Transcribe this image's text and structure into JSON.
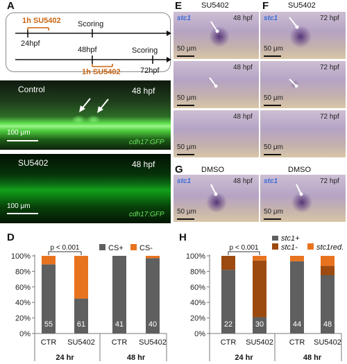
{
  "panels": {
    "A": {
      "label": "A",
      "upper": {
        "treatment": "1h SU5402",
        "tick1": "24hpf",
        "event": "Scoring"
      },
      "lower": {
        "tick1": "48hpf",
        "treatment": "1h SU5402",
        "event": "Scoring",
        "tick2": "72hpf"
      }
    },
    "B": {
      "label": "B",
      "condition": "Control",
      "time": "48 hpf",
      "scale": "100 μm",
      "marker": "cdh17:GFP"
    },
    "C": {
      "label": "C",
      "condition": "SU5402",
      "time": "48 hpf",
      "scale": "100 μm",
      "marker": "cdh17:GFP"
    },
    "E": {
      "label": "E",
      "condition": "SU5402",
      "images": [
        {
          "gene": "stc1",
          "time": "48 hpf",
          "scale": "50 μm"
        },
        {
          "gene": "",
          "time": "48 hpf",
          "scale": "50 μm"
        },
        {
          "gene": "",
          "time": "48 hpf",
          "scale": "50 μm"
        }
      ]
    },
    "F": {
      "label": "F",
      "condition": "SU5402",
      "images": [
        {
          "gene": "stc1",
          "time": "72 hpf",
          "scale": "50 μm"
        },
        {
          "gene": "",
          "time": "72 hpf",
          "scale": "50 μm"
        },
        {
          "gene": "",
          "time": "72 hpf",
          "scale": "50 μm"
        }
      ]
    },
    "G": {
      "label": "G",
      "left": {
        "condition": "DMSO",
        "gene": "stc1",
        "time": "48 hpf",
        "scale": "50 μm"
      },
      "right": {
        "condition": "DMSO",
        "gene": "stc1",
        "time": "72 hpf",
        "scale": "50 μm"
      }
    },
    "D": {
      "label": "D"
    },
    "H": {
      "label": "H"
    }
  },
  "colors": {
    "gray": "#5f5f5f",
    "orange": "#e8731f",
    "brown": "#9c4a10",
    "stc_blue": "#3a6bd6"
  },
  "chart_data": [
    {
      "id": "D",
      "type": "bar",
      "stacked": true,
      "categories": [
        "CTR",
        "SU5402",
        "CTR",
        "SU5402"
      ],
      "groups": [
        {
          "label": "24 hr",
          "categories": [
            0,
            1
          ]
        },
        {
          "label": "48 hr",
          "categories": [
            2,
            3
          ]
        }
      ],
      "series": [
        {
          "name": "CS+",
          "color": "#5f5f5f",
          "values": [
            89,
            45,
            100,
            97
          ]
        },
        {
          "name": "CS-",
          "color": "#e8731f",
          "values": [
            11,
            55,
            0,
            3
          ]
        }
      ],
      "counts": [
        "55",
        "61",
        "41",
        "40"
      ],
      "yticks": [
        "0%",
        "20%",
        "40%",
        "60%",
        "80%",
        "100%"
      ],
      "ylim": [
        0,
        100
      ],
      "annotation": "p < 0.001",
      "legend": "top-right"
    },
    {
      "id": "H",
      "type": "bar",
      "stacked": true,
      "categories": [
        "CTR",
        "SU5402",
        "CTR",
        "SU5402"
      ],
      "groups": [
        {
          "label": "24 hr",
          "categories": [
            0,
            1
          ]
        },
        {
          "label": "48 hr",
          "categories": [
            2,
            3
          ]
        }
      ],
      "series": [
        {
          "name": "stc1+",
          "color": "#5f5f5f",
          "values": [
            82,
            21,
            93,
            75
          ]
        },
        {
          "name": "stc1-",
          "color": "#9c4a10",
          "values": [
            18,
            73,
            0,
            12
          ]
        },
        {
          "name": "stc1red.",
          "color": "#e8731f",
          "values": [
            0,
            6,
            7,
            13
          ]
        }
      ],
      "counts": [
        "22",
        "30",
        "44",
        "48"
      ],
      "yticks": [
        "0%",
        "20%",
        "40%",
        "60%",
        "80%",
        "100%"
      ],
      "ylim": [
        0,
        100
      ],
      "annotation": "p < 0.001",
      "legend": "top-right"
    }
  ]
}
